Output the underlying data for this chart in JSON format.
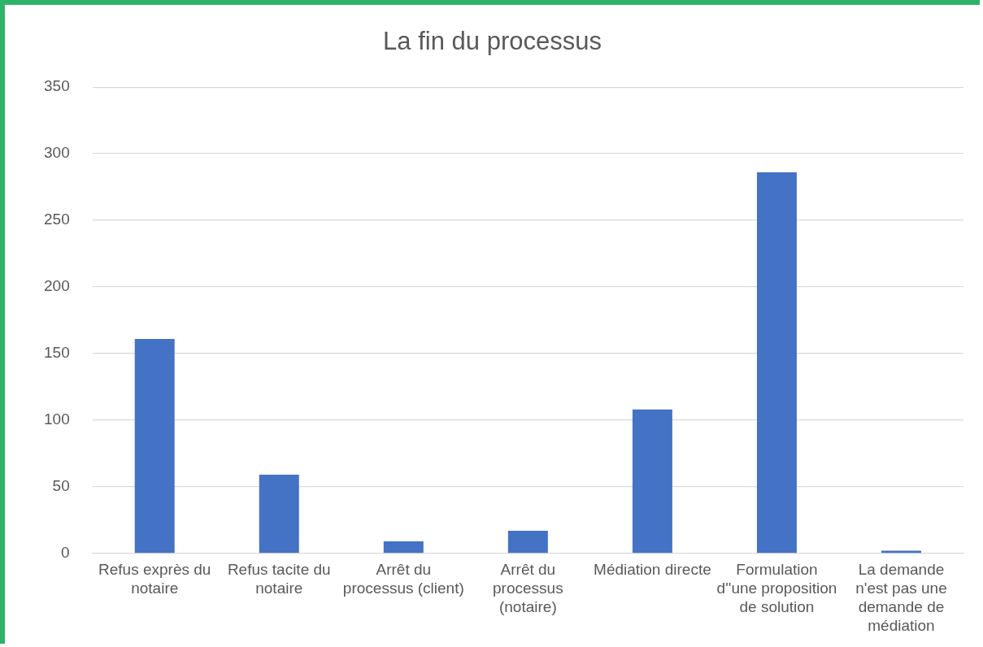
{
  "chart_data": {
    "type": "bar",
    "title": "La fin du processus",
    "categories": [
      "Refus exprès du notaire",
      "Refus tacite du notaire",
      "Arrêt du processus (client)",
      "Arrêt du processus (notaire)",
      "Médiation directe",
      "Formulation d''une proposition de solution",
      "La demande n'est pas une demande de médiation"
    ],
    "values": [
      161,
      59,
      9,
      17,
      108,
      286,
      2
    ],
    "color": "#4472c4",
    "ylim": [
      0,
      350
    ],
    "yticks": [
      0,
      50,
      100,
      150,
      200,
      250,
      300,
      350
    ],
    "grid": "y",
    "legend": false
  }
}
